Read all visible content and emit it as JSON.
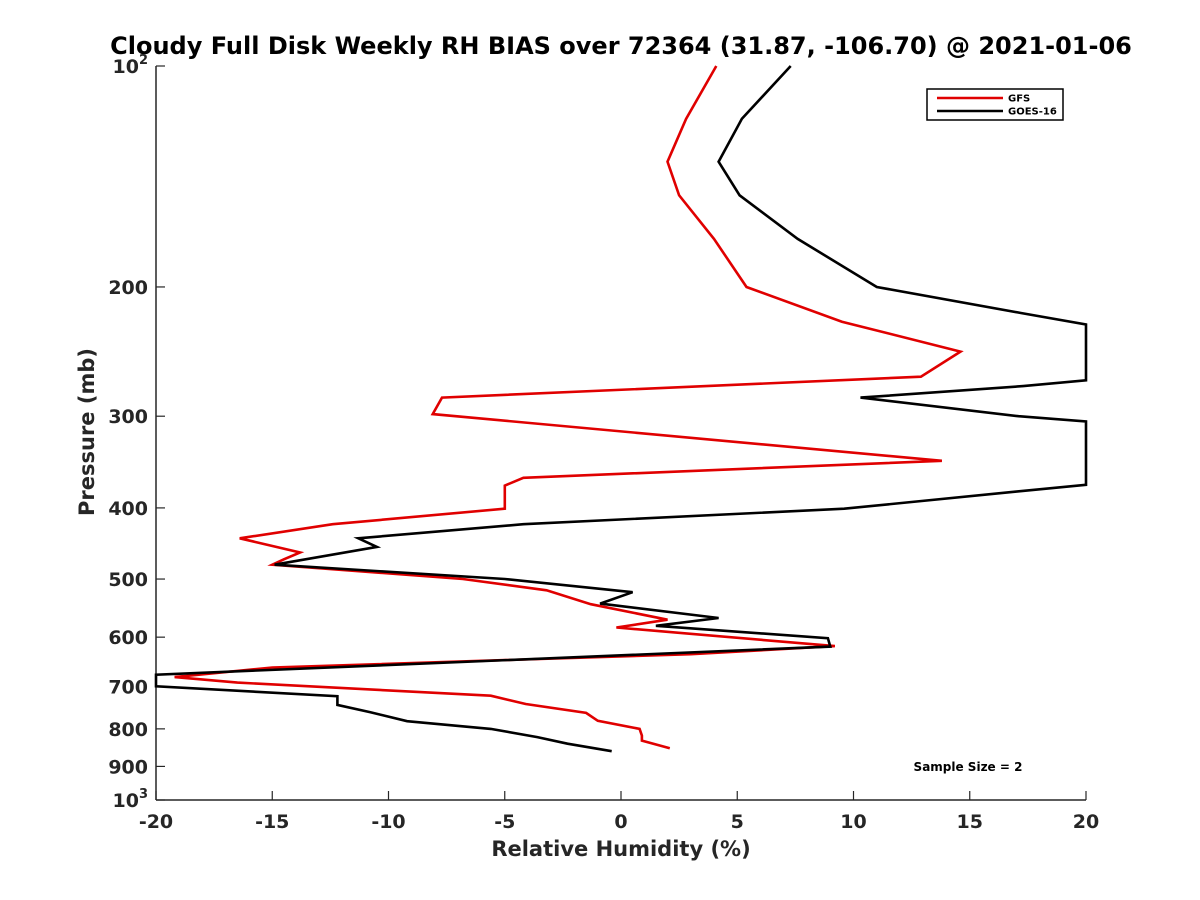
{
  "chart_data": {
    "type": "line",
    "title": "Cloudy Full Disk Weekly RH BIAS over 72364 (31.87, -106.70) @ 2021-01-06",
    "xlabel": "Relative Humidity (%)",
    "ylabel": "Pressure (mb)",
    "xlim": [
      -20,
      20
    ],
    "ylim": [
      100,
      1000
    ],
    "y_scale": "log",
    "y_reversed": true,
    "x_ticks": [
      "-20",
      "-15",
      "-10",
      "-5",
      "0",
      "5",
      "10",
      "15",
      "20"
    ],
    "y_ticks": [
      {
        "value": 100,
        "base": "10",
        "exp": "2"
      },
      {
        "value": 200,
        "label": "200"
      },
      {
        "value": 300,
        "label": "300"
      },
      {
        "value": 400,
        "label": "400"
      },
      {
        "value": 500,
        "label": "500"
      },
      {
        "value": 600,
        "label": "600"
      },
      {
        "value": 700,
        "label": "700"
      },
      {
        "value": 800,
        "label": "800"
      },
      {
        "value": 900,
        "label": "900"
      },
      {
        "value": 1000,
        "base": "10",
        "exp": "3"
      }
    ],
    "legend_position": "top-right",
    "annotation": "Sample Size = 2",
    "series": [
      {
        "name": "GFS",
        "color": "#e00000",
        "points": [
          [
            4.1,
            100
          ],
          [
            2.8,
            118
          ],
          [
            2.0,
            135
          ],
          [
            2.5,
            150
          ],
          [
            4.0,
            172
          ],
          [
            5.4,
            200
          ],
          [
            9.5,
            223
          ],
          [
            14.6,
            245
          ],
          [
            12.9,
            265
          ],
          [
            -7.7,
            283
          ],
          [
            -8.1,
            298
          ],
          [
            13.8,
            345
          ],
          [
            -4.2,
            364
          ],
          [
            -5.0,
            373
          ],
          [
            -5.0,
            401
          ],
          [
            -12.4,
            421
          ],
          [
            -16.4,
            440
          ],
          [
            -13.8,
            460
          ],
          [
            -14.5,
            470
          ],
          [
            -15.0,
            478
          ],
          [
            -6.8,
            500
          ],
          [
            -3.2,
            518
          ],
          [
            -1.3,
            541
          ],
          [
            2.0,
            568
          ],
          [
            -0.2,
            582
          ],
          [
            9.2,
            617
          ],
          [
            3.0,
            633
          ],
          [
            -15.0,
            660
          ],
          [
            -19.2,
            680
          ],
          [
            -16.5,
            692
          ],
          [
            -5.6,
            721
          ],
          [
            -4.1,
            740
          ],
          [
            -1.5,
            761
          ],
          [
            -1.0,
            780
          ],
          [
            0.8,
            800
          ],
          [
            0.9,
            817
          ],
          [
            0.9,
            830
          ],
          [
            2.1,
            850
          ]
        ]
      },
      {
        "name": "GOES-16",
        "color": "#000000",
        "points": [
          [
            7.3,
            100
          ],
          [
            5.2,
            118
          ],
          [
            4.2,
            135
          ],
          [
            5.1,
            150
          ],
          [
            7.6,
            172
          ],
          [
            11.0,
            200
          ],
          [
            17.2,
            217
          ],
          [
            20.0,
            225
          ],
          [
            20.0,
            268
          ],
          [
            17.3,
            273
          ],
          [
            10.3,
            283
          ],
          [
            17.1,
            300
          ],
          [
            20.0,
            305
          ],
          [
            20.0,
            372
          ],
          [
            17.0,
            380
          ],
          [
            9.6,
            401
          ],
          [
            -4.2,
            421
          ],
          [
            -11.3,
            440
          ],
          [
            -10.5,
            452
          ],
          [
            -14.9,
            478
          ],
          [
            -5.0,
            500
          ],
          [
            0.5,
            521
          ],
          [
            -0.9,
            540
          ],
          [
            4.2,
            565
          ],
          [
            1.5,
            579
          ],
          [
            8.9,
            602
          ],
          [
            9.0,
            618
          ],
          [
            -20.0,
            675
          ],
          [
            -20.0,
            700
          ],
          [
            -12.2,
            722
          ],
          [
            -12.2,
            742
          ],
          [
            -10.8,
            759
          ],
          [
            -9.2,
            781
          ],
          [
            -5.6,
            800
          ],
          [
            -3.6,
            821
          ],
          [
            -2.3,
            838
          ],
          [
            -0.4,
            858
          ]
        ]
      }
    ]
  }
}
